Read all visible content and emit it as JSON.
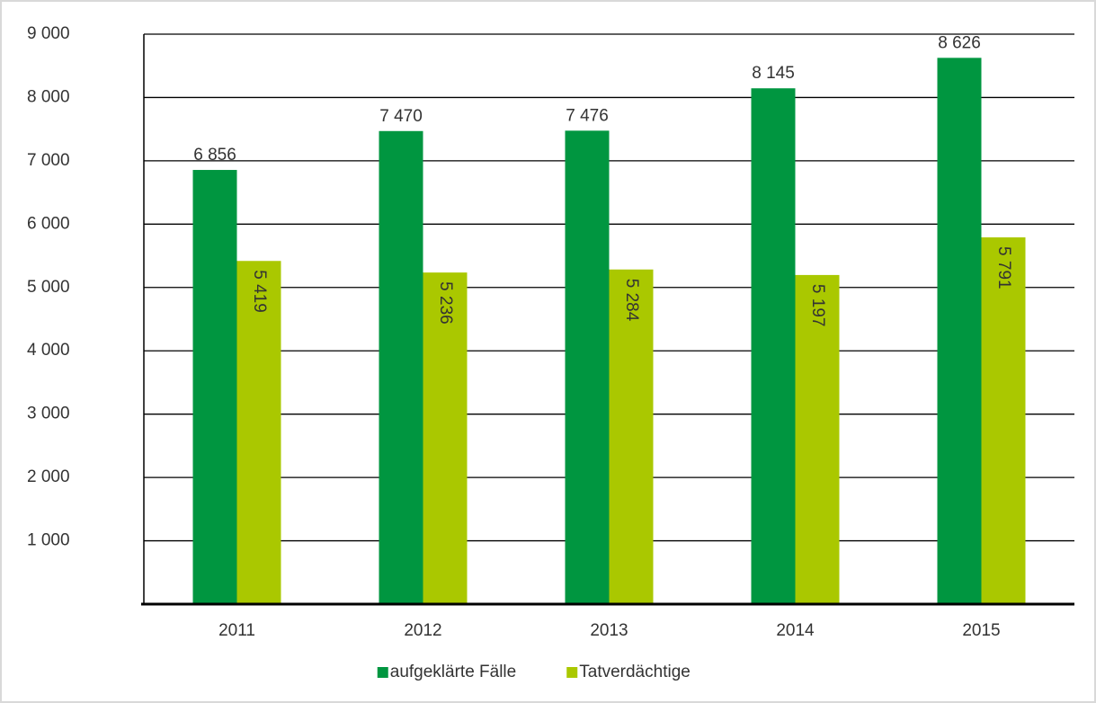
{
  "chart_data": {
    "type": "bar",
    "categories": [
      "2011",
      "2012",
      "2013",
      "2014",
      "2015"
    ],
    "series": [
      {
        "name": "aufgeklärte Fälle",
        "color": "#009640",
        "values": [
          6856,
          7470,
          7476,
          8145,
          8626
        ],
        "value_labels": [
          "6 856",
          "7 470",
          "7 476",
          "8 145",
          "8 626"
        ]
      },
      {
        "name": "Tatverdächtige",
        "color": "#aac800",
        "values": [
          5419,
          5236,
          5284,
          5197,
          5791
        ],
        "value_labels": [
          "5 419",
          "5 236",
          "5 284",
          "5 197",
          "5 791"
        ]
      }
    ],
    "ylim": [
      0,
      9000
    ],
    "yticks": [
      {
        "value": 1000,
        "label": "1 000"
      },
      {
        "value": 2000,
        "label": "2 000"
      },
      {
        "value": 3000,
        "label": "3 000"
      },
      {
        "value": 4000,
        "label": "4 000"
      },
      {
        "value": 5000,
        "label": "5 000"
      },
      {
        "value": 6000,
        "label": "6 000"
      },
      {
        "value": 7000,
        "label": "7 000"
      },
      {
        "value": 8000,
        "label": "8 000"
      },
      {
        "value": 9000,
        "label": "9 000"
      }
    ],
    "grid": true,
    "legend": "bottom"
  }
}
